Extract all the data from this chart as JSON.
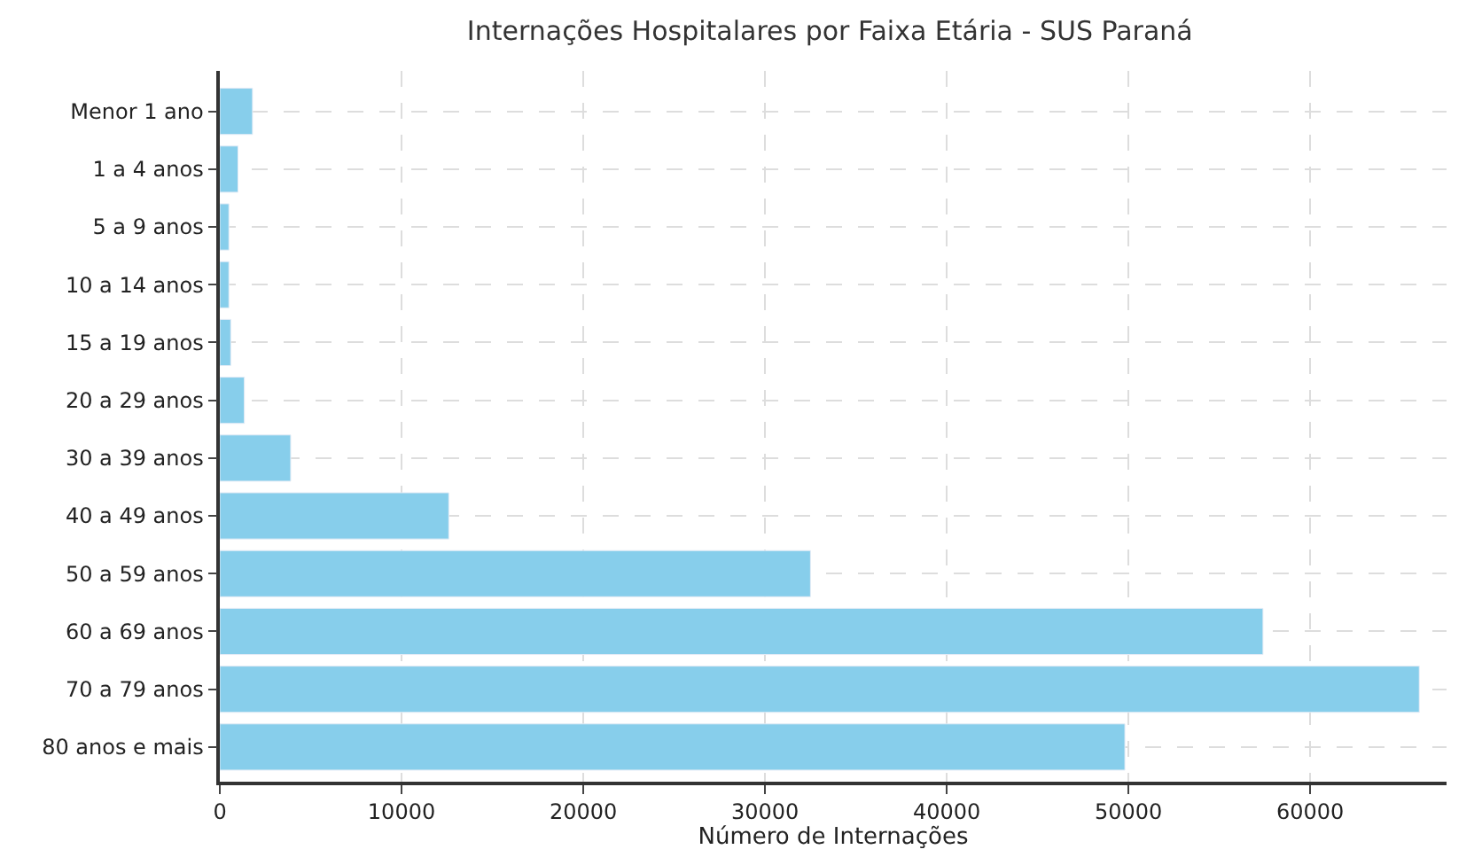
{
  "chart_data": {
    "type": "bar",
    "orientation": "horizontal",
    "title": "Internações Hospitalares por Faixa Etária - SUS Paraná",
    "xlabel": "Número de Internações",
    "categories": [
      "Menor 1 ano",
      "1 a 4 anos",
      "5 a 9 anos",
      "10 a 14 anos",
      "15 a 19 anos",
      "20 a 29 anos",
      "30 a 39 anos",
      "40 a 49 anos",
      "50 a 59 anos",
      "60 a 69 anos",
      "70 a 79 anos",
      "80 anos e mais"
    ],
    "values": [
      1800,
      1000,
      500,
      500,
      600,
      1350,
      3900,
      12600,
      32500,
      57400,
      66000,
      49800
    ],
    "color": "#87ceeb",
    "xlim": [
      0,
      67500
    ],
    "xticks": [
      0,
      10000,
      20000,
      30000,
      40000,
      50000,
      60000
    ],
    "grid": true
  }
}
